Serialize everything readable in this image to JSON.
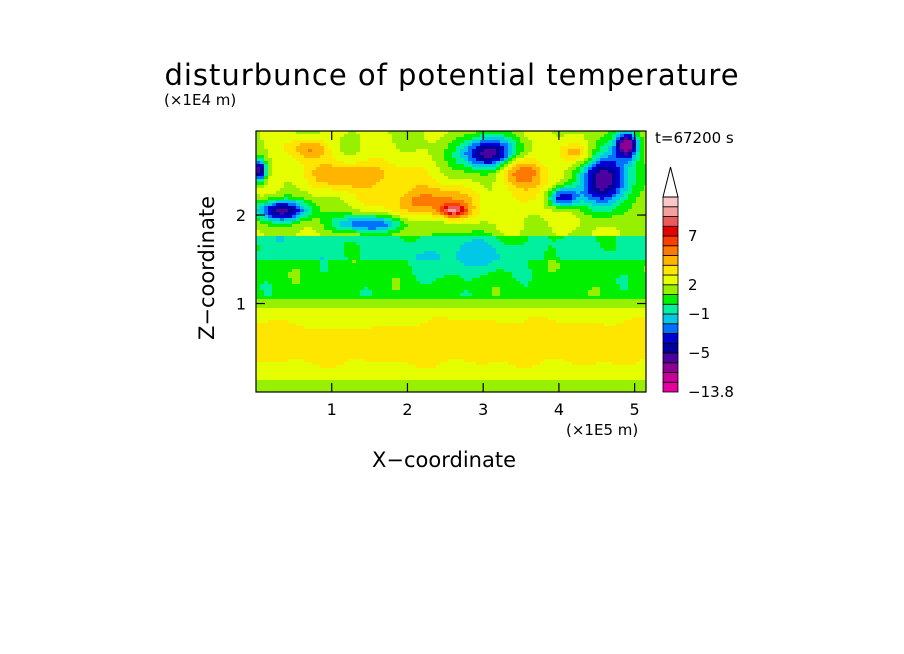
{
  "chart_data": {
    "type": "heatmap",
    "title": "disturbunce of potential temperature",
    "time_label": "t=67200 s",
    "xlabel": "X−coordinate",
    "ylabel": "Z−coordinate",
    "x_unit": "(×1E5 m)",
    "y_unit": "(×1E4 m)",
    "xlim": [
      0,
      5.15
    ],
    "ylim": [
      0,
      2.95
    ],
    "x_ticks": [
      1,
      2,
      3,
      4,
      5
    ],
    "y_ticks": [
      1,
      2
    ],
    "colorbar": {
      "min": -13.8,
      "extend_max": true,
      "tick_labels": [
        "7",
        "2",
        "−1",
        "−5",
        "−13.8"
      ],
      "tick_values": [
        7,
        2,
        -1,
        -5,
        -13.8
      ],
      "levels": [
        {
          "lo": -13.8,
          "hi": -10,
          "color": "#e6009e"
        },
        {
          "lo": -10,
          "hi": -8,
          "color": "#c8009a"
        },
        {
          "lo": -8,
          "hi": -6,
          "color": "#8c0094"
        },
        {
          "lo": -6,
          "hi": -5,
          "color": "#4b00a0"
        },
        {
          "lo": -5,
          "hi": -4,
          "color": "#00009a"
        },
        {
          "lo": -4,
          "hi": -3,
          "color": "#0000d2"
        },
        {
          "lo": -3,
          "hi": -2,
          "color": "#0070ff"
        },
        {
          "lo": -2,
          "hi": -1,
          "color": "#00c8e6"
        },
        {
          "lo": -1,
          "hi": 0,
          "color": "#00f0a0"
        },
        {
          "lo": 0,
          "hi": 1,
          "color": "#00f000"
        },
        {
          "lo": 1,
          "hi": 2,
          "color": "#96f000"
        },
        {
          "lo": 2,
          "hi": 3,
          "color": "#e6ff00"
        },
        {
          "lo": 3,
          "hi": 4,
          "color": "#ffe600"
        },
        {
          "lo": 4,
          "hi": 5,
          "color": "#ffb400"
        },
        {
          "lo": 5,
          "hi": 6,
          "color": "#ff7800"
        },
        {
          "lo": 6,
          "hi": 7,
          "color": "#ff3c00"
        },
        {
          "lo": 7,
          "hi": 8,
          "color": "#e60000"
        },
        {
          "lo": 8,
          "hi": 9,
          "color": "#ee5a5a"
        },
        {
          "lo": 9,
          "hi": 10,
          "color": "#f5a0a0"
        },
        {
          "lo": 10,
          "hi": 12,
          "color": "#fbc6c6"
        }
      ]
    },
    "field_features": [
      {
        "x": 2.6,
        "z": 2.05,
        "value": 7.5,
        "sx": 0.18,
        "sz": 0.07
      },
      {
        "x": 2.3,
        "z": 2.15,
        "value": 5.5,
        "sx": 0.6,
        "sz": 0.18
      },
      {
        "x": 1.3,
        "z": 2.45,
        "value": 5.0,
        "sx": 0.7,
        "sz": 0.17
      },
      {
        "x": 0.7,
        "z": 2.75,
        "value": 5.0,
        "sx": 0.25,
        "sz": 0.12
      },
      {
        "x": 3.5,
        "z": 2.5,
        "value": 5.0,
        "sx": 0.3,
        "sz": 0.15
      },
      {
        "x": 4.25,
        "z": 2.7,
        "value": 4.5,
        "sx": 0.25,
        "sz": 0.12
      },
      {
        "x": 3.8,
        "z": 2.3,
        "value": 3.5,
        "sx": 0.5,
        "sz": 0.3
      },
      {
        "x": 3.05,
        "z": 2.7,
        "value": -6.0,
        "sx": 0.35,
        "sz": 0.18
      },
      {
        "x": 4.6,
        "z": 2.4,
        "value": -6.0,
        "sx": 0.35,
        "sz": 0.3
      },
      {
        "x": 4.05,
        "z": 2.2,
        "value": -5.0,
        "sx": 0.2,
        "sz": 0.12
      },
      {
        "x": 4.9,
        "z": 2.8,
        "value": -7.0,
        "sx": 0.15,
        "sz": 0.15
      },
      {
        "x": 0.35,
        "z": 2.05,
        "value": -5.5,
        "sx": 0.35,
        "sz": 0.12
      },
      {
        "x": 0.05,
        "z": 2.5,
        "value": -6.0,
        "sx": 0.08,
        "sz": 0.12
      },
      {
        "x": 1.5,
        "z": 1.9,
        "value": -3.0,
        "sx": 0.5,
        "sz": 0.1
      },
      {
        "x": 2.75,
        "z": 1.55,
        "value": -1.8,
        "sx": 0.6,
        "sz": 0.22
      },
      {
        "x": 3.0,
        "z": 2.3,
        "value": 2.0,
        "sx": 1.5,
        "sz": 0.5
      },
      {
        "x": 2.6,
        "z": 0.6,
        "value": 3.5,
        "sx": 2.4,
        "sz": 0.16
      },
      {
        "x": 1.35,
        "z": 0.8,
        "value": 2.2,
        "sx": 0.6,
        "sz": 0.08
      }
    ]
  }
}
